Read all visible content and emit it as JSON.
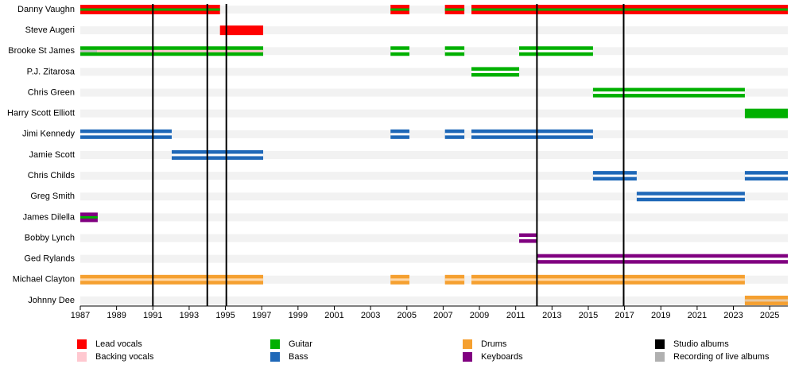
{
  "chart_data": {
    "type": "timeline",
    "xlim": [
      1987,
      2026
    ],
    "xticks": [
      1987,
      1989,
      1991,
      1993,
      1995,
      1997,
      1999,
      2001,
      2003,
      2005,
      2007,
      2009,
      2011,
      2013,
      2015,
      2017,
      2019,
      2021,
      2023,
      2025
    ],
    "members": [
      {
        "name": "Danny Vaughn",
        "periods": [
          {
            "start": 1987,
            "end": 1994.7,
            "color": "#ff0000",
            "stripe": "#00b000"
          },
          {
            "start": 2004.1,
            "end": 2005.14,
            "color": "#ff0000",
            "stripe": "#00b000"
          },
          {
            "start": 2007.1,
            "end": 2008.17,
            "color": "#ff0000",
            "stripe": "#00b000"
          },
          {
            "start": 2008.56,
            "end": 2026,
            "color": "#ff0000",
            "stripe": "#00b000"
          }
        ]
      },
      {
        "name": "Steve Augeri",
        "periods": [
          {
            "start": 1994.7,
            "end": 1997.08,
            "color": "#ff0000"
          }
        ]
      },
      {
        "name": "Brooke St James",
        "periods": [
          {
            "start": 1987,
            "end": 1987.92,
            "color": "#00b000",
            "stripe": "#c0c0c0"
          },
          {
            "start": 1987.92,
            "end": 1997.08,
            "color": "#00b000",
            "stripe": "#ffc8d0"
          },
          {
            "start": 2004.1,
            "end": 2005.14,
            "color": "#00b000",
            "stripe": "#ffffff"
          },
          {
            "start": 2007.1,
            "end": 2008.17,
            "color": "#00b000",
            "stripe": "#ffffff"
          },
          {
            "start": 2011.19,
            "end": 2015.26,
            "color": "#00b000",
            "stripe": "#ffffff"
          }
        ]
      },
      {
        "name": "P.J. Zitarosa",
        "periods": [
          {
            "start": 2008.56,
            "end": 2011.19,
            "color": "#00b000",
            "stripe": "#ffffff"
          }
        ]
      },
      {
        "name": "Chris Green",
        "periods": [
          {
            "start": 2015.26,
            "end": 2023.63,
            "color": "#00b000",
            "stripe": "#ffffff"
          }
        ]
      },
      {
        "name": "Harry Scott Elliott",
        "periods": [
          {
            "start": 2023.63,
            "end": 2026,
            "color": "#00b000"
          }
        ]
      },
      {
        "name": "Jimi Kennedy",
        "periods": [
          {
            "start": 1987,
            "end": 1992.04,
            "color": "#1f68b8",
            "stripe": "#ffffff"
          },
          {
            "start": 2004.1,
            "end": 2005.14,
            "color": "#1f68b8",
            "stripe": "#ffffff"
          },
          {
            "start": 2007.1,
            "end": 2008.17,
            "color": "#1f68b8",
            "stripe": "#ffffff"
          },
          {
            "start": 2008.56,
            "end": 2015.26,
            "color": "#1f68b8",
            "stripe": "#ffffff"
          }
        ]
      },
      {
        "name": "Jamie Scott",
        "periods": [
          {
            "start": 1992.04,
            "end": 1997.08,
            "color": "#1f68b8",
            "stripe": "#ffffff"
          }
        ]
      },
      {
        "name": "Chris Childs",
        "periods": [
          {
            "start": 2015.26,
            "end": 2017.67,
            "color": "#1f68b8",
            "stripe": "#ffffff"
          },
          {
            "start": 2023.63,
            "end": 2026,
            "color": "#1f68b8",
            "stripe": "#ffffff"
          }
        ]
      },
      {
        "name": "Greg Smith",
        "periods": [
          {
            "start": 2017.67,
            "end": 2023.63,
            "color": "#1f68b8",
            "stripe": "#ffffff"
          }
        ]
      },
      {
        "name": "James Dilella",
        "periods": [
          {
            "start": 1987,
            "end": 1987.96,
            "color": "#800080",
            "stripe": "#00b000"
          }
        ]
      },
      {
        "name": "Bobby Lynch",
        "periods": [
          {
            "start": 2011.19,
            "end": 2012.17,
            "color": "#800080",
            "stripe": "#ffffff"
          }
        ]
      },
      {
        "name": "Ged Rylands",
        "periods": [
          {
            "start": 2012.17,
            "end": 2026,
            "color": "#800080",
            "stripe": "#ffffff"
          }
        ]
      },
      {
        "name": "Michael Clayton",
        "periods": [
          {
            "start": 1987,
            "end": 1997.08,
            "color": "#f5a030",
            "stripe": "#ffd8a8"
          },
          {
            "start": 2004.1,
            "end": 2005.14,
            "color": "#f5a030",
            "stripe": "#ffd8a8"
          },
          {
            "start": 2007.1,
            "end": 2008.17,
            "color": "#f5a030",
            "stripe": "#ffd8a8"
          },
          {
            "start": 2008.56,
            "end": 2023.63,
            "color": "#f5a030",
            "stripe": "#ffd8a8"
          }
        ]
      },
      {
        "name": "Johnny Dee",
        "periods": [
          {
            "start": 2023.63,
            "end": 2026,
            "color": "#f5a030",
            "stripe": "#e8c8a0"
          }
        ]
      }
    ],
    "studio_albums": {
      "color": "#000000",
      "values": [
        1991,
        1994,
        1995.05,
        2012.17,
        2016.95
      ]
    },
    "legend": [
      {
        "label": "Lead vocals",
        "color": "#ff0000"
      },
      {
        "label": "Backing vocals",
        "color": "#ffc8d0"
      },
      {
        "label": "Guitar",
        "color": "#00b000"
      },
      {
        "label": "Bass",
        "color": "#1f68b8"
      },
      {
        "label": "Drums",
        "color": "#f5a030"
      },
      {
        "label": "Keyboards",
        "color": "#800080"
      },
      {
        "label": "Studio albums",
        "color": "#000000"
      },
      {
        "label": "Recording of live albums",
        "color": "#b0b0b0"
      }
    ]
  }
}
